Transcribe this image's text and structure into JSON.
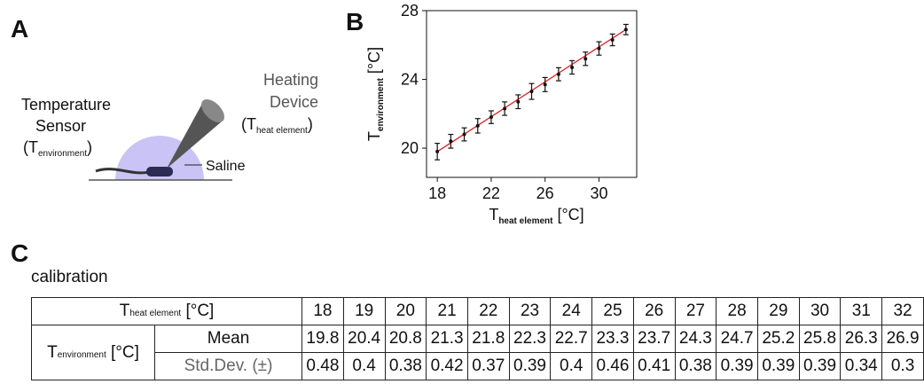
{
  "panels": {
    "a": "A",
    "b": "B",
    "c": "C"
  },
  "diagram": {
    "heating_device": [
      "Heating",
      "Device"
    ],
    "heating_symbol": [
      "(T",
      "heat element",
      ")"
    ],
    "sensor": [
      "Temperature",
      "Sensor"
    ],
    "sensor_symbol": [
      "(T",
      "environment",
      ")"
    ],
    "saline": "Saline"
  },
  "chart": {
    "type": "scatter",
    "xlabel": [
      "T",
      "heat element",
      " [°C]"
    ],
    "ylabel": [
      "T",
      "environment",
      " [°C]"
    ],
    "xlim": [
      17.2,
      32.8
    ],
    "ylim": [
      18.3,
      28
    ],
    "xticks": [
      18,
      22,
      26,
      30
    ],
    "yticks": [
      20,
      24,
      28
    ],
    "color": "#111111",
    "fit": {
      "color": "#e02020",
      "x": [
        18,
        32
      ],
      "y": [
        19.8,
        26.9
      ]
    }
  },
  "table": {
    "title": "calibration",
    "corner": [
      "T",
      "heat element",
      " [°C]"
    ],
    "row_group": [
      "T",
      "environment",
      " [°C]"
    ],
    "row_labels": [
      "Mean",
      "Std.Dev. (±)"
    ],
    "heat": [
      18,
      19,
      20,
      21,
      22,
      23,
      24,
      25,
      26,
      27,
      28,
      29,
      30,
      31,
      32
    ],
    "mean": [
      19.8,
      20.4,
      20.8,
      21.3,
      21.8,
      22.3,
      22.7,
      23.3,
      23.7,
      24.3,
      24.7,
      25.2,
      25.8,
      26.3,
      26.9
    ],
    "std": [
      0.48,
      0.4,
      0.38,
      0.42,
      0.37,
      0.39,
      0.4,
      0.46,
      0.41,
      0.38,
      0.39,
      0.39,
      0.39,
      0.34,
      0.3
    ]
  }
}
